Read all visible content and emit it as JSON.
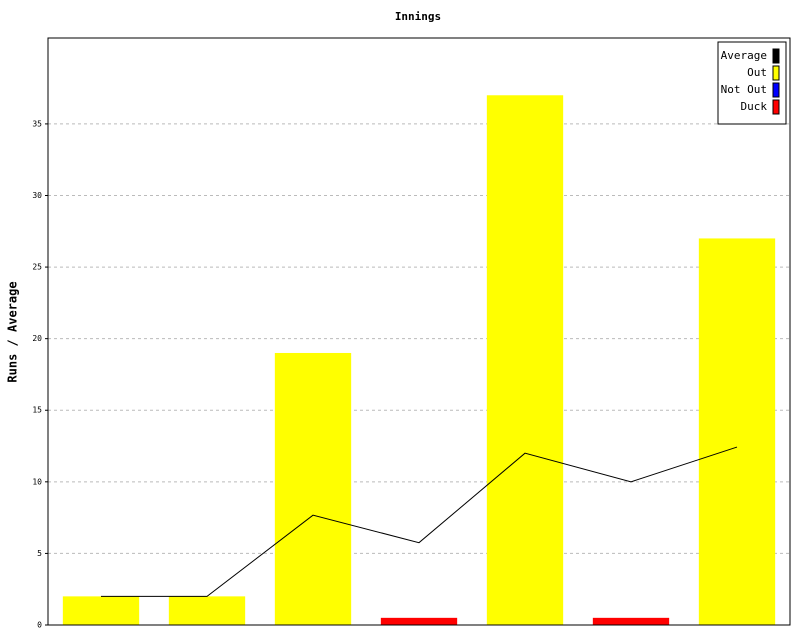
{
  "chart_data": {
    "type": "bar",
    "title": "Innings",
    "y_label": "Runs / Average",
    "categories": [
      null,
      null,
      null,
      null,
      null,
      null,
      null
    ],
    "series": [
      {
        "name": "Average",
        "color": "#000000",
        "type": "line",
        "values": [
          2,
          2,
          7.67,
          5.75,
          12,
          10,
          12.43
        ]
      },
      {
        "name": "Out",
        "color": "#ffff00",
        "values": [
          2,
          2,
          19,
          null,
          37,
          null,
          27
        ]
      },
      {
        "name": "Not Out",
        "color": "#0000ff",
        "values": [
          null,
          null,
          null,
          null,
          null,
          null,
          null
        ]
      },
      {
        "name": "Duck",
        "color": "#ff0000",
        "values": [
          null,
          null,
          null,
          0.5,
          null,
          0.5,
          null
        ]
      }
    ],
    "ylim": [
      0,
      41
    ],
    "yticks": [
      0,
      5,
      10,
      15,
      20,
      25,
      30,
      35
    ],
    "grid": true,
    "legend": "upper right"
  }
}
